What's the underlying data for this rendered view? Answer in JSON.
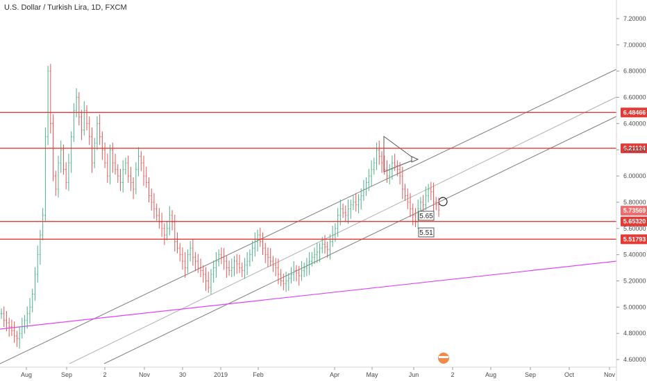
{
  "chart_data": {
    "type": "candlestick",
    "title": "U.S. Dollar / Turkish Lira, 1D, FXCM",
    "ylim": [
      4.5,
      7.3
    ],
    "y_ticks": [
      "7.20000",
      "7.00000",
      "6.80000",
      "6.60000",
      "6.40000",
      "6.20000",
      "6.00000",
      "5.80000",
      "5.60000",
      "5.40000",
      "5.20000",
      "5.00000",
      "4.80000",
      "4.60000"
    ],
    "x_ticks": [
      "Aug",
      "Sep",
      "2",
      "Nov",
      "30",
      "2019",
      "Feb",
      "Apr",
      "May",
      "Jun",
      "2",
      "Aug",
      "Sep",
      "Oct",
      "Nov"
    ],
    "colors": {
      "up": "#4caf88",
      "down": "#e25656",
      "level": "#e53935",
      "channel": "#7d7d7d",
      "trend": "#e040fb"
    },
    "horizontal_levels": [
      {
        "value": 6.48466,
        "label": "6.48466"
      },
      {
        "value": 6.21124,
        "label": "6.21124"
      },
      {
        "value": 5.6532,
        "label": "5.65320"
      },
      {
        "value": 5.51793,
        "label": "5.51793"
      }
    ],
    "last_price": {
      "value": 5.73569,
      "label": "5.73569"
    },
    "annotations": [
      "5.65",
      "5.51"
    ],
    "closes": [
      4.95,
      4.9,
      4.88,
      4.85,
      4.82,
      4.78,
      4.76,
      4.8,
      4.85,
      4.9,
      4.95,
      5.0,
      5.1,
      5.25,
      5.4,
      5.55,
      5.7,
      6.3,
      6.8,
      6.4,
      6.0,
      5.9,
      6.1,
      6.2,
      6.05,
      5.95,
      6.1,
      6.3,
      6.5,
      6.6,
      6.45,
      6.35,
      6.5,
      6.4,
      6.3,
      6.1,
      6.25,
      6.4,
      6.3,
      6.2,
      6.1,
      6.0,
      6.2,
      6.1,
      6.05,
      6.0,
      5.95,
      6.05,
      6.1,
      6.0,
      5.95,
      5.9,
      6.05,
      6.15,
      6.1,
      6.0,
      5.95,
      5.85,
      5.8,
      5.75,
      5.7,
      5.65,
      5.6,
      5.55,
      5.6,
      5.7,
      5.65,
      5.5,
      5.45,
      5.4,
      5.35,
      5.3,
      5.4,
      5.45,
      5.38,
      5.35,
      5.3,
      5.28,
      5.25,
      5.2,
      5.15,
      5.25,
      5.3,
      5.35,
      5.4,
      5.38,
      5.35,
      5.3,
      5.28,
      5.3,
      5.35,
      5.33,
      5.3,
      5.28,
      5.32,
      5.35,
      5.4,
      5.45,
      5.5,
      5.55,
      5.5,
      5.45,
      5.4,
      5.38,
      5.35,
      5.32,
      5.3,
      5.25,
      5.2,
      5.18,
      5.2,
      5.22,
      5.25,
      5.28,
      5.26,
      5.24,
      5.28,
      5.3,
      5.32,
      5.35,
      5.38,
      5.4,
      5.42,
      5.45,
      5.48,
      5.46,
      5.44,
      5.5,
      5.55,
      5.6,
      5.7,
      5.75,
      5.72,
      5.7,
      5.75,
      5.78,
      5.8,
      5.78,
      5.82,
      5.85,
      5.9,
      5.95,
      6.0,
      6.05,
      6.1,
      6.2,
      6.15,
      6.1,
      6.05,
      6.0,
      6.05,
      6.1,
      6.08,
      6.05,
      6.0,
      5.9,
      5.85,
      5.8,
      5.75,
      5.7,
      5.65,
      5.75,
      5.8,
      5.78,
      5.85,
      5.9,
      5.88,
      5.8,
      5.78,
      5.74
    ]
  }
}
